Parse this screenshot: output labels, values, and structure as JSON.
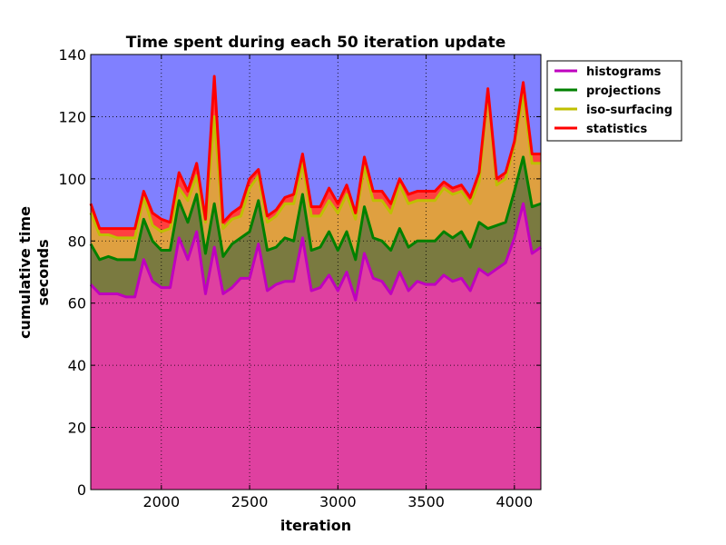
{
  "chart_data": {
    "type": "area",
    "title": "Time spent during each 50 iteration update",
    "xlabel": "iteration",
    "ylabel_lines": [
      "cumulative time",
      "seconds"
    ],
    "xlim": [
      1600,
      4150
    ],
    "ylim": [
      0,
      140
    ],
    "xticks": [
      2000,
      2500,
      3000,
      3500,
      4000
    ],
    "yticks": [
      0,
      20,
      40,
      60,
      80,
      100,
      120,
      140
    ],
    "grid": true,
    "legend_position": "outside-right",
    "background_color": "#8080ff",
    "x": [
      1600,
      1650,
      1700,
      1750,
      1800,
      1850,
      1900,
      1950,
      2000,
      2050,
      2100,
      2150,
      2200,
      2250,
      2300,
      2350,
      2400,
      2450,
      2500,
      2550,
      2600,
      2650,
      2700,
      2750,
      2800,
      2850,
      2900,
      2950,
      3000,
      3050,
      3100,
      3150,
      3200,
      3250,
      3300,
      3350,
      3400,
      3450,
      3500,
      3550,
      3600,
      3650,
      3700,
      3750,
      3800,
      3850,
      3900,
      3950,
      4000,
      4050,
      4100,
      4150
    ],
    "series": [
      {
        "name": "histograms",
        "line_color": "#bf00bf",
        "fill_color": "#df40a0",
        "values": [
          66,
          63,
          63,
          63,
          62,
          62,
          74,
          67,
          65,
          65,
          81,
          74,
          83,
          63,
          78,
          63,
          65,
          68,
          68,
          79,
          64,
          66,
          67,
          67,
          81,
          64,
          65,
          69,
          64,
          70,
          61,
          76,
          68,
          67,
          63,
          70,
          64,
          67,
          66,
          66,
          69,
          67,
          68,
          64,
          71,
          69,
          71,
          73,
          81,
          92,
          76,
          78
        ]
      },
      {
        "name": "projections",
        "line_color": "#008000",
        "fill_color": "#7a7a40",
        "values": [
          79,
          74,
          75,
          74,
          74,
          74,
          87,
          80,
          77,
          77,
          93,
          86,
          95,
          76,
          92,
          75,
          79,
          81,
          83,
          93,
          77,
          78,
          81,
          80,
          95,
          77,
          78,
          83,
          77,
          83,
          74,
          91,
          81,
          80,
          77,
          84,
          78,
          80,
          80,
          80,
          83,
          81,
          83,
          78,
          86,
          84,
          85,
          86,
          96,
          107,
          91,
          92
        ]
      },
      {
        "name": "iso-surfacing",
        "line_color": "#bfbf00",
        "fill_color": "#dfa040",
        "values": [
          89,
          82,
          82,
          81,
          81,
          81,
          94,
          85,
          83,
          84,
          97,
          93,
          101,
          86,
          120,
          84,
          87,
          88,
          97,
          101,
          86,
          88,
          92,
          92,
          105,
          88,
          88,
          93,
          89,
          95,
          87,
          104,
          93,
          93,
          89,
          98,
          92,
          93,
          93,
          93,
          97,
          95,
          96,
          92,
          99,
          128,
          98,
          100,
          111,
          127,
          105,
          105
        ]
      },
      {
        "name": "statistics",
        "line_color": "#ff0000",
        "fill_color": "#ff4040",
        "values": [
          92,
          84,
          84,
          84,
          84,
          84,
          96,
          89,
          87,
          86,
          102,
          96,
          105,
          87,
          133,
          86,
          89,
          91,
          100,
          103,
          88,
          90,
          94,
          95,
          108,
          91,
          91,
          97,
          92,
          98,
          89,
          107,
          96,
          96,
          92,
          100,
          95,
          96,
          96,
          96,
          99,
          97,
          98,
          94,
          102,
          129,
          100,
          102,
          112,
          131,
          108,
          108
        ]
      }
    ]
  }
}
